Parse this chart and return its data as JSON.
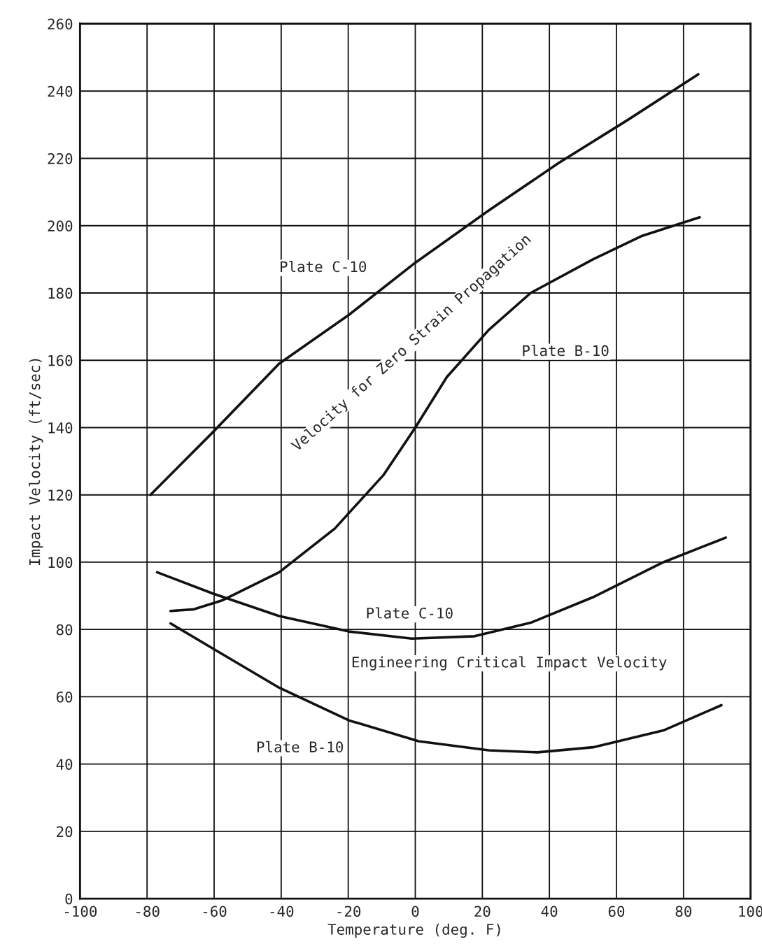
{
  "chart_data": {
    "type": "line",
    "xlabel": "Temperature (deg. F)",
    "ylabel": "Impact Velocity (ft/sec)",
    "xlim": [
      -100,
      100
    ],
    "xticks": [
      -100,
      -80,
      -60,
      -40,
      -20,
      0,
      20,
      40,
      60,
      80,
      100
    ],
    "ylim": [
      0,
      260
    ],
    "yticks": [
      0,
      20,
      40,
      60,
      80,
      100,
      120,
      140,
      160,
      180,
      200,
      220,
      240,
      260
    ],
    "grid": true,
    "legend": false,
    "marker": "none",
    "line_style": "solid",
    "series": [
      {
        "color": "#111111",
        "x": [
          -79,
          -61,
          -40.6,
          -19.8,
          0,
          21.9,
          42.7,
          63.5,
          84.4
        ],
        "values": [
          120,
          138,
          159,
          173.5,
          189,
          204.5,
          218.6,
          231.5,
          245
        ]
      },
      {
        "color": "#111111",
        "x": [
          -73,
          -66,
          -57.7,
          -40.6,
          -24,
          -9.4,
          0,
          9.4,
          21.9,
          34.4,
          53,
          67.7,
          84.8
        ],
        "values": [
          85.5,
          86,
          88.6,
          97,
          110,
          126,
          140,
          155,
          169,
          180,
          190,
          197,
          202.5
        ]
      },
      {
        "color": "#111111",
        "x": [
          -77,
          -60.4,
          -40.6,
          -19.8,
          -1,
          17.7,
          34.4,
          53,
          74,
          92.6
        ],
        "values": [
          97,
          90.7,
          84,
          79.4,
          77.3,
          78,
          82,
          89.6,
          100,
          107.3
        ]
      },
      {
        "color": "#111111",
        "x": [
          -73,
          -61.5,
          -40.6,
          -19.8,
          1,
          21.9,
          36.5,
          53,
          74,
          91.3
        ],
        "values": [
          81.8,
          75,
          62.7,
          53,
          46.8,
          44.1,
          43.5,
          45,
          50,
          57.5
        ]
      }
    ],
    "annotations": [
      "Plate C-10",
      "Plate B-10",
      "Velocity for Zero Strain Propagation",
      "Plate C-10",
      "Engineering Critical Impact Velocity",
      "Plate B-10"
    ]
  }
}
